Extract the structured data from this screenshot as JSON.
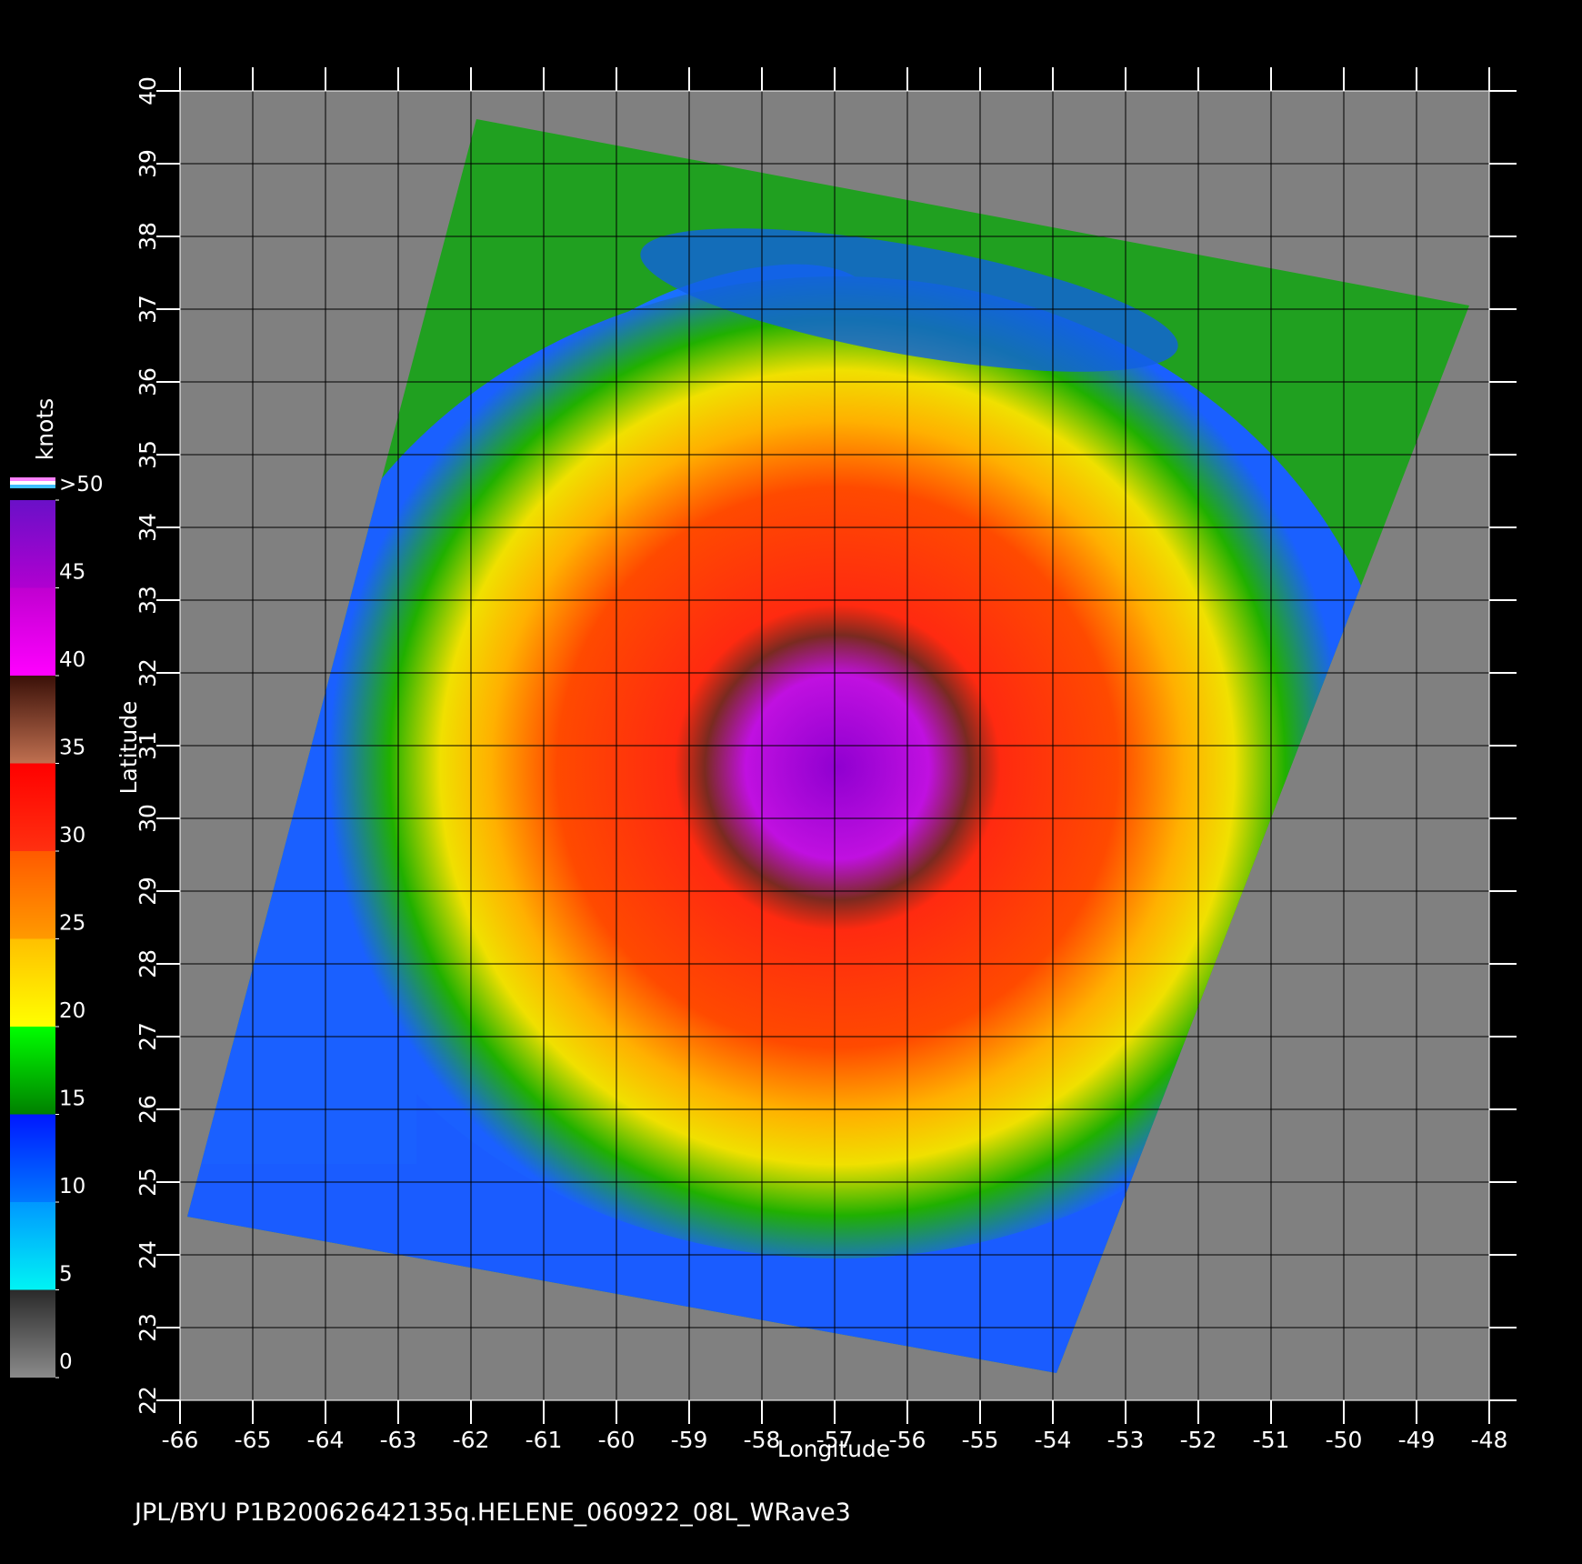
{
  "map": {
    "type": "swath",
    "footer": "JPL/BYU  P1B20062642135q.HELENE_060922_08L_WRave3",
    "x_label": "Longitude",
    "y_label": "Latitude",
    "xlim": [
      -66,
      -48
    ],
    "ylim": [
      22,
      40
    ],
    "xticks": [
      -66,
      -65,
      -64,
      -63,
      -62,
      -61,
      -60,
      -59,
      -58,
      -57,
      -56,
      -55,
      -54,
      -53,
      -52,
      -51,
      -50,
      -49,
      -48
    ],
    "yticks": [
      22,
      23,
      24,
      25,
      26,
      27,
      28,
      29,
      30,
      31,
      32,
      33,
      34,
      35,
      36,
      37,
      38,
      39,
      40
    ],
    "colorbar": {
      "unit": "knots",
      "lim": [
        0,
        50
      ],
      "ticks": [
        0,
        5,
        10,
        15,
        20,
        25,
        30,
        35,
        40,
        45,
        {
          "value": 50,
          "label": ">50"
        }
      ],
      "band_colors": [
        [
          "#8a8a8a",
          "#2a2a2a"
        ],
        [
          "#00f4f4",
          "#0098ff"
        ],
        [
          "#0078ff",
          "#0018ff"
        ],
        [
          "#008000",
          "#00ff00"
        ],
        [
          "#ffff00",
          "#ffc000"
        ],
        [
          "#ff9a00",
          "#ff5a00"
        ],
        [
          "#ff3010",
          "#ff0000"
        ],
        [
          "#c07050",
          "#3a1008"
        ],
        [
          "#ff00ff",
          "#c000d0"
        ],
        [
          "#b000d0",
          "#6a10c8"
        ]
      ]
    }
  }
}
